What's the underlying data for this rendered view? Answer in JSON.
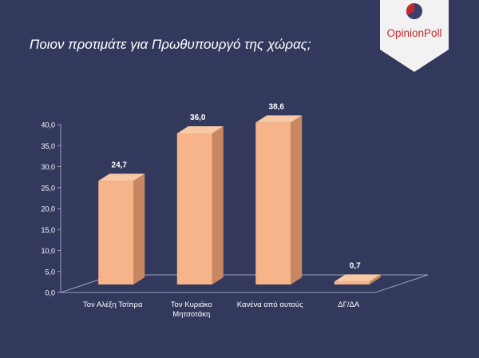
{
  "header": {
    "title": "Ποιον προτιμάτε για Πρωθυπουργό της χώρας;"
  },
  "brand": {
    "name": "OpinionPoll",
    "logo_icon": "pie-logo-icon",
    "colors": {
      "red": "#c4282f",
      "navy": "#33395d",
      "badge": "#f2f2f2"
    }
  },
  "chart_data": {
    "type": "bar",
    "categories": [
      "Τον Αλέξη Τσίπρα",
      "Τον Κυριάκο Μητσοτάκη",
      "Κανένα από αυτούς",
      "ΔΓ/ΔΑ"
    ],
    "category_lines": [
      [
        "Τον Αλέξη Τσίπρα"
      ],
      [
        "Τον Κυριάκο",
        "Μητσοτάκη"
      ],
      [
        "Κανένα από αυτούς"
      ],
      [
        "ΔΓ/ΔΑ"
      ]
    ],
    "values": [
      24.7,
      36.0,
      38.6,
      0.7
    ],
    "value_labels": [
      "24,7",
      "36,0",
      "38,6",
      "0,7"
    ],
    "yticks": [
      "0,0",
      "5,0",
      "10,0",
      "15,0",
      "20,0",
      "25,0",
      "30,0",
      "35,0",
      "40,0"
    ],
    "ylim": [
      0,
      40
    ],
    "bar_color": "#f7b389",
    "bar_side_color": "#c98761",
    "bar_top_color": "#f9c8a4",
    "grid": false,
    "legend": "none"
  }
}
